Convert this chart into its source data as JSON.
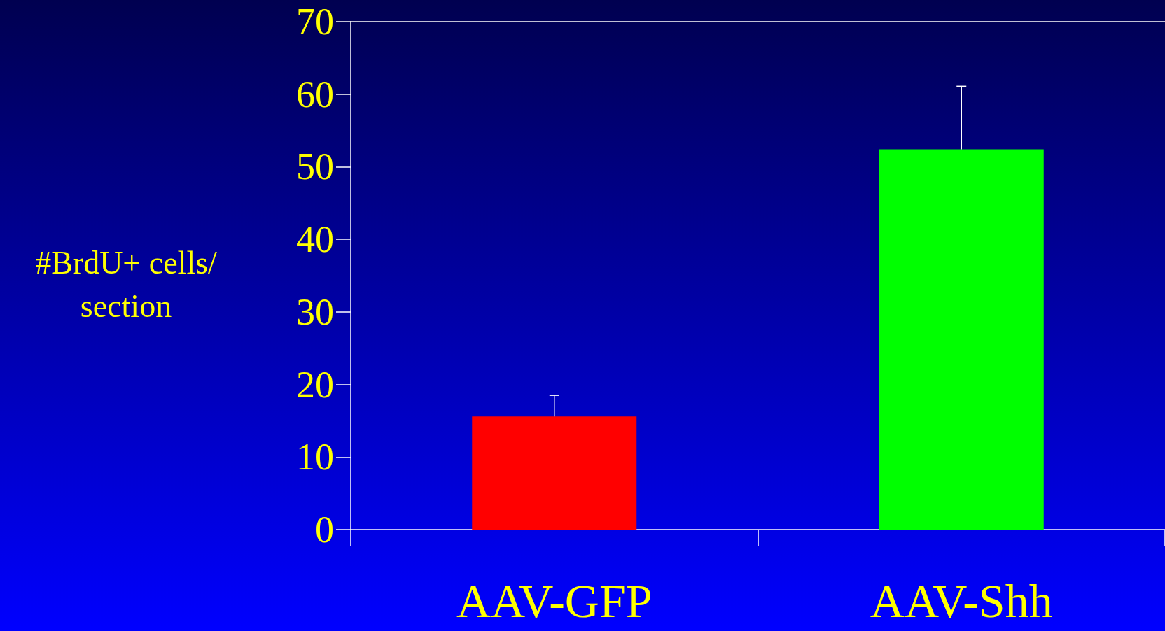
{
  "chart_data": {
    "type": "bar",
    "ylabel": "#BrdU+ cells/\nsection",
    "categories": [
      "AAV-GFP",
      "AAV-Shh"
    ],
    "values": [
      15.6,
      52.4
    ],
    "colors": [
      "#ff0000",
      "#00ff00"
    ],
    "errors": [
      [
        15.6,
        18.5
      ],
      [
        52.4,
        61.1
      ]
    ],
    "ylim": [
      0,
      70
    ],
    "yticks": [
      0,
      10,
      20,
      30,
      40,
      50,
      60,
      70
    ],
    "grid": false
  }
}
